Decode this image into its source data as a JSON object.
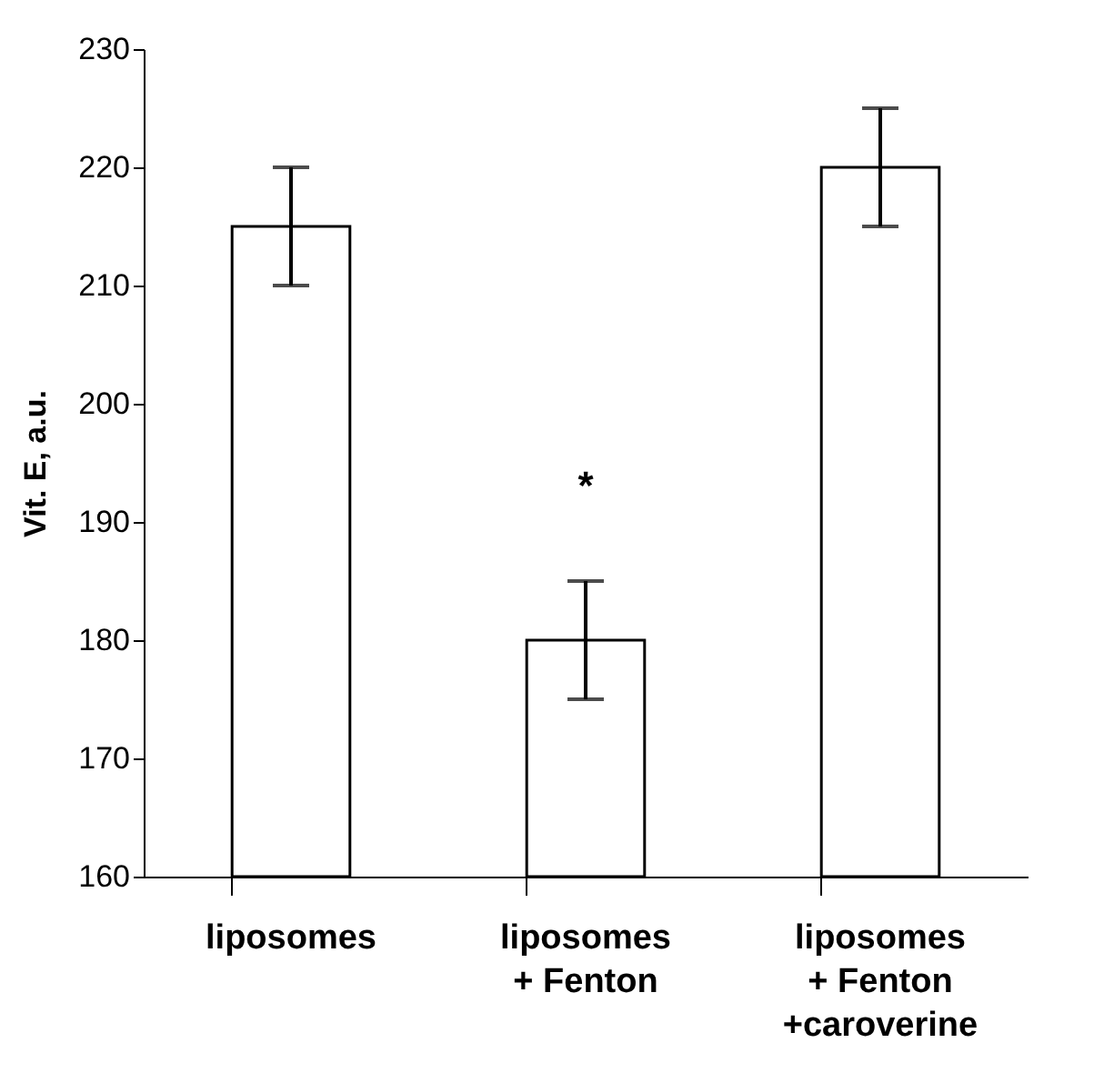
{
  "chart_data": {
    "type": "bar",
    "ylabel": "Vit. E, a.u.",
    "categories": [
      "liposomes",
      "liposomes\n+ Fenton",
      "liposomes\n+ Fenton\n+caroverine"
    ],
    "values": [
      215,
      180,
      220
    ],
    "errors": [
      5,
      5,
      5
    ],
    "color": "#ffffff",
    "ylim": [
      160,
      230
    ],
    "yticks": [
      160,
      170,
      180,
      190,
      200,
      210,
      220,
      230
    ],
    "annotations": [
      "*"
    ]
  }
}
